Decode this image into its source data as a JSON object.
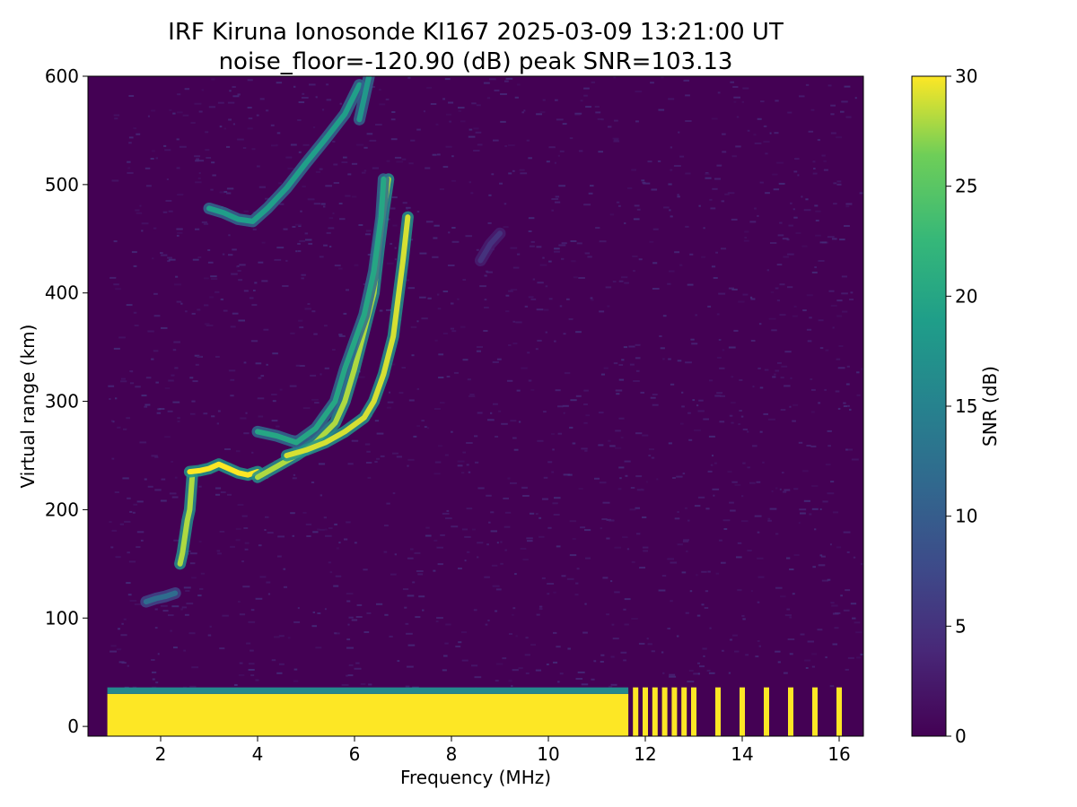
{
  "chart_data": {
    "type": "heatmap",
    "title": "IRF Kiruna Ionosonde KI167 2025-03-09 13:21:00  UT",
    "subtitle": "noise_floor=-120.90 (dB) peak SNR=103.13",
    "xlabel": "Frequency (MHz)",
    "ylabel": "Virtual range (km)",
    "xlim": [
      0.5,
      16.5
    ],
    "ylim": [
      -9,
      600
    ],
    "xticks": [
      2,
      4,
      6,
      8,
      10,
      12,
      14,
      16
    ],
    "yticks": [
      0,
      100,
      200,
      300,
      400,
      500,
      600
    ],
    "grid": false,
    "colorbar": {
      "label": "SNR (dB)",
      "range": [
        0,
        30
      ],
      "ticks": [
        0,
        5,
        10,
        15,
        20,
        25,
        30
      ],
      "colormap": "viridis",
      "colors": [
        "#440154",
        "#3b528b",
        "#21918c",
        "#5ec962",
        "#fde725"
      ]
    },
    "data_start_freq_mhz": 0.9,
    "ground_clutter": {
      "range_km": [
        0,
        30
      ],
      "continuous_freq_mhz": [
        0.9,
        11.65
      ],
      "discrete_freqs_mhz": [
        11.8,
        12.0,
        12.2,
        12.4,
        12.6,
        12.8,
        13.0,
        13.5,
        14.0,
        14.5,
        15.0,
        15.5,
        16.0
      ]
    },
    "echo_traces": [
      {
        "points": [
          [
            1.7,
            115
          ],
          [
            1.9,
            118
          ],
          [
            2.1,
            120
          ],
          [
            2.3,
            123
          ]
        ],
        "snr": 12
      },
      {
        "points": [
          [
            2.4,
            150
          ],
          [
            2.45,
            160
          ],
          [
            2.5,
            175
          ],
          [
            2.55,
            190
          ],
          [
            2.6,
            200
          ],
          [
            2.65,
            230
          ]
        ],
        "snr": 28
      },
      {
        "points": [
          [
            2.6,
            235
          ],
          [
            2.8,
            236
          ],
          [
            3.0,
            238
          ],
          [
            3.2,
            242
          ],
          [
            3.4,
            238
          ],
          [
            3.6,
            234
          ],
          [
            3.8,
            232
          ],
          [
            4.0,
            235
          ]
        ],
        "snr": 30
      },
      {
        "points": [
          [
            4.0,
            230
          ],
          [
            4.4,
            240
          ],
          [
            4.8,
            250
          ],
          [
            5.2,
            262
          ],
          [
            5.6,
            280
          ],
          [
            5.8,
            300
          ],
          [
            6.0,
            330
          ],
          [
            6.2,
            365
          ],
          [
            6.4,
            400
          ],
          [
            6.5,
            440
          ],
          [
            6.6,
            475
          ],
          [
            6.7,
            505
          ]
        ],
        "snr": 28
      },
      {
        "points": [
          [
            4.6,
            250
          ],
          [
            5.0,
            255
          ],
          [
            5.4,
            262
          ],
          [
            5.8,
            272
          ],
          [
            6.2,
            285
          ],
          [
            6.4,
            300
          ],
          [
            6.6,
            325
          ],
          [
            6.8,
            360
          ],
          [
            6.9,
            395
          ],
          [
            7.0,
            430
          ],
          [
            7.1,
            470
          ]
        ],
        "snr": 29
      },
      {
        "points": [
          [
            4.0,
            272
          ],
          [
            4.4,
            268
          ],
          [
            4.8,
            262
          ],
          [
            5.2,
            275
          ],
          [
            5.6,
            300
          ],
          [
            5.8,
            330
          ],
          [
            6.0,
            355
          ],
          [
            6.2,
            380
          ],
          [
            6.4,
            420
          ],
          [
            6.55,
            470
          ],
          [
            6.6,
            505
          ]
        ],
        "snr": 20
      },
      {
        "points": [
          [
            3.0,
            478
          ],
          [
            3.3,
            474
          ],
          [
            3.6,
            468
          ],
          [
            3.9,
            466
          ],
          [
            4.2,
            478
          ],
          [
            4.6,
            497
          ],
          [
            5.0,
            520
          ],
          [
            5.4,
            542
          ],
          [
            5.8,
            565
          ],
          [
            6.1,
            592
          ]
        ],
        "snr": 19
      },
      {
        "points": [
          [
            6.1,
            560
          ],
          [
            6.2,
            580
          ],
          [
            6.3,
            600
          ]
        ],
        "snr": 18
      },
      {
        "points": [
          [
            8.6,
            430
          ],
          [
            8.8,
            445
          ],
          [
            9.0,
            455
          ]
        ],
        "snr": 5
      }
    ]
  }
}
